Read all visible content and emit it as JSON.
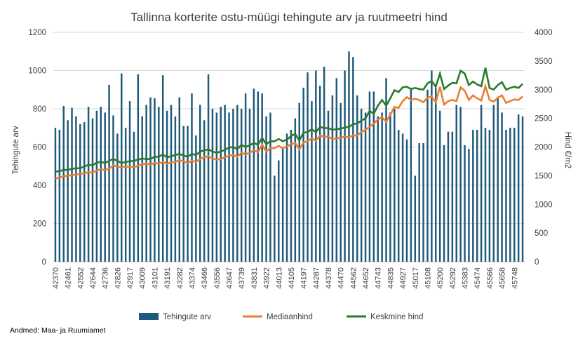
{
  "chart_data": {
    "type": "bar+line",
    "title": "Tallinna korterite ostu-müügi tehingute arv ja ruutmeetri hind",
    "ylabel_left": "Tehingute arv",
    "ylabel_right": "Hind €/m2",
    "ylim_left": [
      0,
      1200
    ],
    "ylim_right": [
      0,
      4000
    ],
    "yticks_left": [
      0,
      200,
      400,
      600,
      800,
      1000,
      1200
    ],
    "yticks_right": [
      0,
      500,
      1000,
      1500,
      2000,
      2500,
      3000,
      3500,
      4000
    ],
    "x_start": 42370,
    "x_step": 30.4,
    "x_count": 114,
    "x_tick_labels": [
      "42370",
      "42461",
      "42552",
      "42644",
      "42736",
      "42826",
      "42917",
      "43009",
      "43101",
      "43191",
      "43282",
      "43374",
      "43466",
      "43556",
      "43647",
      "43739",
      "43831",
      "43922",
      "44013",
      "44105",
      "44197",
      "44287",
      "44378",
      "44470",
      "44562",
      "44652",
      "44743",
      "44835",
      "44927",
      "45017",
      "45108",
      "45200",
      "45292",
      "45383",
      "45474",
      "45566",
      "45658",
      "45748"
    ],
    "legend_position": "bottom",
    "source": "Andmed: Maa- ja Ruumiamet",
    "colors": {
      "bars": "#1f5a7a",
      "median": "#ed7d31",
      "mean": "#2a7a2a"
    },
    "series": [
      {
        "name": "Tehingute arv",
        "type": "bar",
        "axis": "left",
        "values": [
          700,
          690,
          815,
          740,
          805,
          760,
          720,
          730,
          810,
          750,
          790,
          810,
          780,
          925,
          765,
          670,
          985,
          700,
          840,
          680,
          980,
          760,
          820,
          860,
          855,
          810,
          975,
          790,
          820,
          760,
          860,
          710,
          710,
          880,
          660,
          820,
          740,
          980,
          800,
          780,
          810,
          820,
          780,
          800,
          820,
          800,
          880,
          800,
          905,
          890,
          880,
          760,
          780,
          450,
          530,
          600,
          670,
          690,
          750,
          830,
          910,
          990,
          840,
          1000,
          920,
          1020,
          790,
          870,
          960,
          830,
          1000,
          1100,
          1070,
          870,
          800,
          780,
          890,
          890,
          760,
          780,
          960,
          780,
          800,
          690,
          670,
          640,
          900,
          450,
          620,
          620,
          900,
          1000,
          910,
          790,
          610,
          680,
          680,
          820,
          810,
          610,
          590,
          690,
          690,
          820,
          700,
          690,
          820,
          860,
          780,
          690,
          700,
          700,
          770,
          760
        ]
      },
      {
        "name": "Mediaanhind",
        "type": "line",
        "axis": "right",
        "values": [
          1450,
          1465,
          1490,
          1500,
          1510,
          1520,
          1530,
          1540,
          1560,
          1555,
          1590,
          1610,
          1600,
          1620,
          1680,
          1660,
          1640,
          1660,
          1650,
          1650,
          1670,
          1700,
          1710,
          1690,
          1720,
          1710,
          1740,
          1710,
          1730,
          1740,
          1770,
          1750,
          1720,
          1760,
          1740,
          1790,
          1820,
          1840,
          1800,
          1780,
          1790,
          1820,
          1850,
          1860,
          1830,
          1900,
          1870,
          1900,
          1940,
          1910,
          2040,
          1920,
          1980,
          1980,
          2020,
          1980,
          2010,
          2050,
          2070,
          1960,
          2080,
          2100,
          2150,
          2110,
          2200,
          2180,
          2180,
          2140,
          2150,
          2160,
          2180,
          2170,
          2200,
          2200,
          2260,
          2300,
          2350,
          2410,
          2480,
          2520,
          2440,
          2560,
          2700,
          2680,
          2800,
          2870,
          2820,
          2840,
          2820,
          2780,
          2860,
          2880,
          2780,
          3050,
          2740,
          2800,
          2820,
          2800,
          3040,
          2980,
          2820,
          2900,
          2850,
          2810,
          3060,
          2820,
          2790,
          2860,
          2900,
          2770,
          2800,
          2830,
          2820,
          2880
        ]
      },
      {
        "name": "Keskmine hind",
        "type": "line",
        "axis": "right",
        "values": [
          1570,
          1580,
          1600,
          1600,
          1620,
          1630,
          1630,
          1660,
          1690,
          1680,
          1730,
          1740,
          1720,
          1760,
          1790,
          1760,
          1720,
          1740,
          1750,
          1760,
          1780,
          1800,
          1790,
          1790,
          1830,
          1830,
          1870,
          1820,
          1840,
          1860,
          1880,
          1850,
          1830,
          1880,
          1860,
          1920,
          1940,
          1960,
          1920,
          1900,
          1920,
          1950,
          1990,
          2000,
          1960,
          2040,
          2000,
          2030,
          2070,
          2040,
          2160,
          2050,
          2100,
          2100,
          2140,
          2100,
          2130,
          2190,
          2230,
          2110,
          2250,
          2260,
          2310,
          2260,
          2350,
          2330,
          2330,
          2300,
          2310,
          2320,
          2340,
          2350,
          2400,
          2410,
          2460,
          2500,
          2630,
          2580,
          2720,
          2820,
          2720,
          2850,
          2990,
          2960,
          3040,
          3050,
          3010,
          3030,
          3010,
          3000,
          3110,
          3150,
          3050,
          3280,
          3010,
          3070,
          3120,
          3110,
          3330,
          3280,
          3080,
          3140,
          3090,
          3060,
          3380,
          3030,
          3000,
          3080,
          3130,
          3000,
          3030,
          3050,
          3030,
          3100
        ]
      }
    ]
  }
}
